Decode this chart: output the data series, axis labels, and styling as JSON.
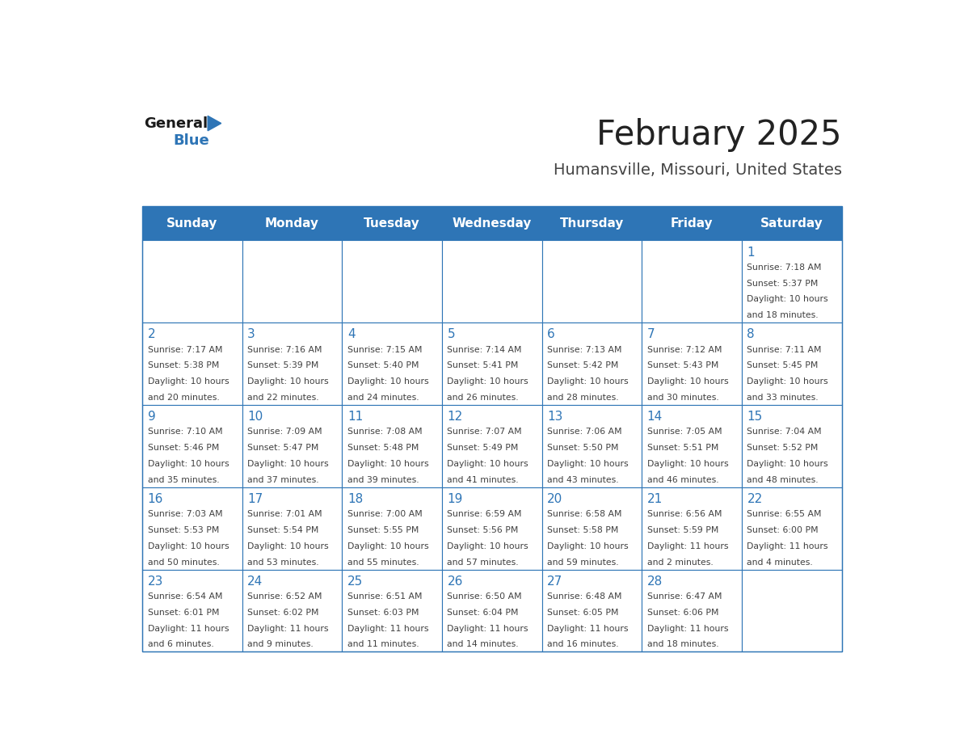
{
  "title": "February 2025",
  "subtitle": "Humansville, Missouri, United States",
  "days_of_week": [
    "Sunday",
    "Monday",
    "Tuesday",
    "Wednesday",
    "Thursday",
    "Friday",
    "Saturday"
  ],
  "header_bg": "#2E75B6",
  "header_text": "#FFFFFF",
  "cell_bg_white": "#FFFFFF",
  "line_color": "#2E75B6",
  "day_num_color": "#2E75B6",
  "text_color": "#404040",
  "title_color": "#222222",
  "subtitle_color": "#444444",
  "calendar": [
    [
      null,
      null,
      null,
      null,
      null,
      null,
      {
        "day": 1,
        "sunrise": "7:18 AM",
        "sunset": "5:37 PM",
        "daylight_line1": "10 hours",
        "daylight_line2": "and 18 minutes."
      }
    ],
    [
      {
        "day": 2,
        "sunrise": "7:17 AM",
        "sunset": "5:38 PM",
        "daylight_line1": "10 hours",
        "daylight_line2": "and 20 minutes."
      },
      {
        "day": 3,
        "sunrise": "7:16 AM",
        "sunset": "5:39 PM",
        "daylight_line1": "10 hours",
        "daylight_line2": "and 22 minutes."
      },
      {
        "day": 4,
        "sunrise": "7:15 AM",
        "sunset": "5:40 PM",
        "daylight_line1": "10 hours",
        "daylight_line2": "and 24 minutes."
      },
      {
        "day": 5,
        "sunrise": "7:14 AM",
        "sunset": "5:41 PM",
        "daylight_line1": "10 hours",
        "daylight_line2": "and 26 minutes."
      },
      {
        "day": 6,
        "sunrise": "7:13 AM",
        "sunset": "5:42 PM",
        "daylight_line1": "10 hours",
        "daylight_line2": "and 28 minutes."
      },
      {
        "day": 7,
        "sunrise": "7:12 AM",
        "sunset": "5:43 PM",
        "daylight_line1": "10 hours",
        "daylight_line2": "and 30 minutes."
      },
      {
        "day": 8,
        "sunrise": "7:11 AM",
        "sunset": "5:45 PM",
        "daylight_line1": "10 hours",
        "daylight_line2": "and 33 minutes."
      }
    ],
    [
      {
        "day": 9,
        "sunrise": "7:10 AM",
        "sunset": "5:46 PM",
        "daylight_line1": "10 hours",
        "daylight_line2": "and 35 minutes."
      },
      {
        "day": 10,
        "sunrise": "7:09 AM",
        "sunset": "5:47 PM",
        "daylight_line1": "10 hours",
        "daylight_line2": "and 37 minutes."
      },
      {
        "day": 11,
        "sunrise": "7:08 AM",
        "sunset": "5:48 PM",
        "daylight_line1": "10 hours",
        "daylight_line2": "and 39 minutes."
      },
      {
        "day": 12,
        "sunrise": "7:07 AM",
        "sunset": "5:49 PM",
        "daylight_line1": "10 hours",
        "daylight_line2": "and 41 minutes."
      },
      {
        "day": 13,
        "sunrise": "7:06 AM",
        "sunset": "5:50 PM",
        "daylight_line1": "10 hours",
        "daylight_line2": "and 43 minutes."
      },
      {
        "day": 14,
        "sunrise": "7:05 AM",
        "sunset": "5:51 PM",
        "daylight_line1": "10 hours",
        "daylight_line2": "and 46 minutes."
      },
      {
        "day": 15,
        "sunrise": "7:04 AM",
        "sunset": "5:52 PM",
        "daylight_line1": "10 hours",
        "daylight_line2": "and 48 minutes."
      }
    ],
    [
      {
        "day": 16,
        "sunrise": "7:03 AM",
        "sunset": "5:53 PM",
        "daylight_line1": "10 hours",
        "daylight_line2": "and 50 minutes."
      },
      {
        "day": 17,
        "sunrise": "7:01 AM",
        "sunset": "5:54 PM",
        "daylight_line1": "10 hours",
        "daylight_line2": "and 53 minutes."
      },
      {
        "day": 18,
        "sunrise": "7:00 AM",
        "sunset": "5:55 PM",
        "daylight_line1": "10 hours",
        "daylight_line2": "and 55 minutes."
      },
      {
        "day": 19,
        "sunrise": "6:59 AM",
        "sunset": "5:56 PM",
        "daylight_line1": "10 hours",
        "daylight_line2": "and 57 minutes."
      },
      {
        "day": 20,
        "sunrise": "6:58 AM",
        "sunset": "5:58 PM",
        "daylight_line1": "10 hours",
        "daylight_line2": "and 59 minutes."
      },
      {
        "day": 21,
        "sunrise": "6:56 AM",
        "sunset": "5:59 PM",
        "daylight_line1": "11 hours",
        "daylight_line2": "and 2 minutes."
      },
      {
        "day": 22,
        "sunrise": "6:55 AM",
        "sunset": "6:00 PM",
        "daylight_line1": "11 hours",
        "daylight_line2": "and 4 minutes."
      }
    ],
    [
      {
        "day": 23,
        "sunrise": "6:54 AM",
        "sunset": "6:01 PM",
        "daylight_line1": "11 hours",
        "daylight_line2": "and 6 minutes."
      },
      {
        "day": 24,
        "sunrise": "6:52 AM",
        "sunset": "6:02 PM",
        "daylight_line1": "11 hours",
        "daylight_line2": "and 9 minutes."
      },
      {
        "day": 25,
        "sunrise": "6:51 AM",
        "sunset": "6:03 PM",
        "daylight_line1": "11 hours",
        "daylight_line2": "and 11 minutes."
      },
      {
        "day": 26,
        "sunrise": "6:50 AM",
        "sunset": "6:04 PM",
        "daylight_line1": "11 hours",
        "daylight_line2": "and 14 minutes."
      },
      {
        "day": 27,
        "sunrise": "6:48 AM",
        "sunset": "6:05 PM",
        "daylight_line1": "11 hours",
        "daylight_line2": "and 16 minutes."
      },
      {
        "day": 28,
        "sunrise": "6:47 AM",
        "sunset": "6:06 PM",
        "daylight_line1": "11 hours",
        "daylight_line2": "and 18 minutes."
      },
      null
    ]
  ]
}
